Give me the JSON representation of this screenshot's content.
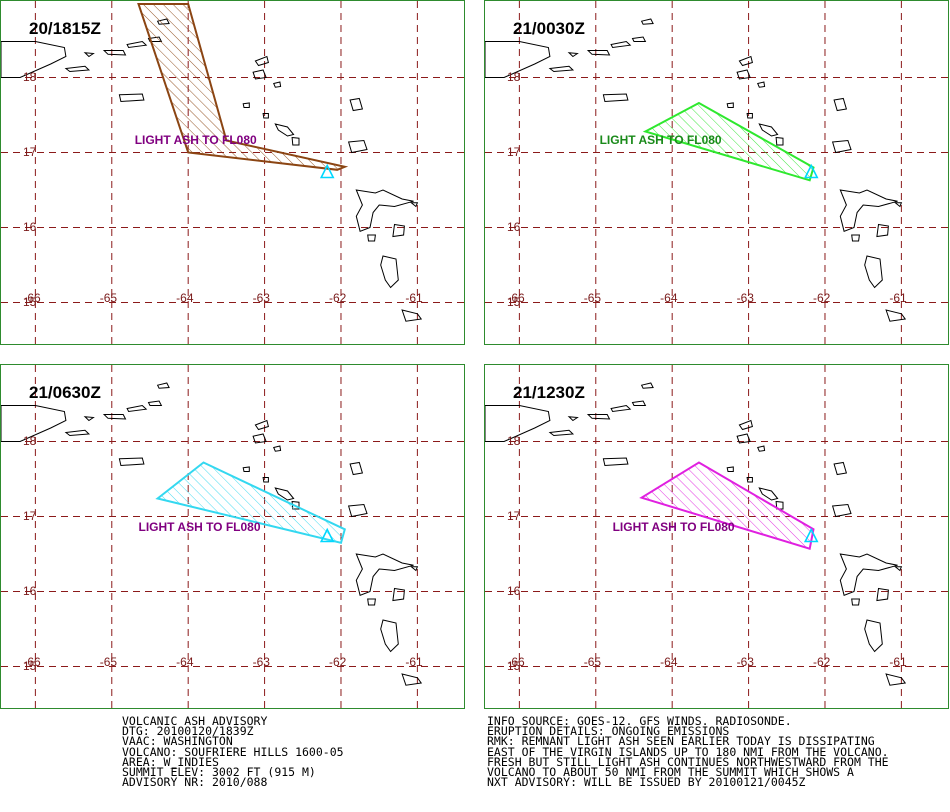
{
  "panels": [
    {
      "time": "20/1815Z",
      "ash_label": "LIGHT ASH TO FL080",
      "ash_color": "#8b4513",
      "label_color": "#800080",
      "label_lon": -64.7,
      "label_lat": 17.18,
      "polygon": [
        [
          -64.65,
          18.98
        ],
        [
          -64.0,
          18.98
        ],
        [
          -63.5,
          17.16
        ],
        [
          -61.95,
          16.81
        ],
        [
          -62.05,
          16.77
        ],
        [
          -64.0,
          17.0
        ]
      ]
    },
    {
      "time": "21/0030Z",
      "ash_label": "LIGHT ASH TO FL080",
      "ash_color": "#2ee82e",
      "label_color": "#1a8a1a",
      "label_lon": -64.95,
      "label_lat": 17.18,
      "polygon": [
        [
          -63.65,
          17.66
        ],
        [
          -62.15,
          16.8
        ],
        [
          -62.2,
          16.63
        ],
        [
          -64.35,
          17.28
        ]
      ]
    },
    {
      "time": "21/0630Z",
      "ash_label": "LIGHT ASH TO FL080",
      "ash_color": "#33d8f0",
      "label_color": "#800080",
      "label_lon": -64.65,
      "label_lat": 16.87,
      "polygon": [
        [
          -63.8,
          17.72
        ],
        [
          -61.95,
          16.83
        ],
        [
          -62.0,
          16.65
        ],
        [
          -64.4,
          17.24
        ]
      ]
    },
    {
      "time": "21/1230Z",
      "ash_label": "LIGHT ASH TO FL080",
      "ash_color": "#e020e0",
      "label_color": "#800080",
      "label_lon": -64.78,
      "label_lat": 16.87,
      "polygon": [
        [
          -63.65,
          17.72
        ],
        [
          -62.15,
          16.83
        ],
        [
          -62.2,
          16.57
        ],
        [
          -64.4,
          17.25
        ]
      ]
    }
  ],
  "map": {
    "lon_labels": [
      "-66",
      "-65",
      "-64",
      "-63",
      "-62",
      "-61"
    ],
    "lat_labels": [
      "18",
      "17",
      "16",
      "15"
    ],
    "volcano": {
      "lon": -62.18,
      "lat": 16.72
    },
    "grid_color": "#8b1a1a",
    "coast_color": "#000000",
    "volcano_color": "#00d8ff"
  },
  "advisory_left": [
    "VOLCANIC ASH ADVISORY",
    "DTG: 20100120/1839Z",
    "VAAC: WASHINGTON",
    "VOLCANO: SOUFRIERE HILLS 1600-05",
    "AREA: W_INDIES",
    "SUMMIT ELEV: 3002 FT (915 M)",
    "ADVISORY NR: 2010/088"
  ],
  "advisory_right": [
    "INFO SOURCE: GOES-12. GFS WINDS. RADIOSONDE.",
    "ERUPTION DETAILS: ONGOING EMISSIONS",
    "RMK: REMNANT LIGHT ASH SEEN EARLIER TODAY IS DISSIPATING",
    "EAST OF THE VIRGIN ISLANDS UP TO 180 NMI FROM THE VOLCANO.",
    "FRESH BUT STILL LIGHT ASH CONTINUES NORTHWESTWARD FROM THE",
    "VOLCANO TO ABOUT 50 NMI FROM THE SUMMIT WHICH SHOWS A",
    "NXT ADVISORY: WILL BE ISSUED BY 20100121/0045Z"
  ]
}
